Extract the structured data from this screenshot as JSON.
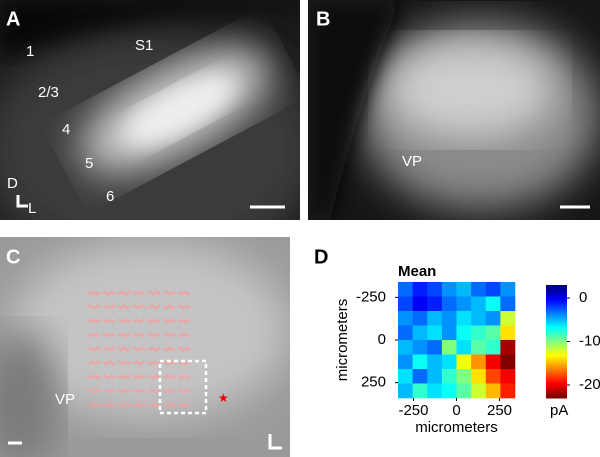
{
  "panels": {
    "A": {
      "label": "A",
      "annotations": [
        "S1",
        "1",
        "2/3",
        "4",
        "5",
        "6"
      ],
      "axes": [
        "D",
        "L"
      ]
    },
    "B": {
      "label": "B",
      "annotations": [
        "VP"
      ]
    },
    "C": {
      "label": "C",
      "annotations": [
        "VP"
      ]
    },
    "D": {
      "label": "D"
    }
  },
  "heatmap": {
    "type": "heatmap",
    "title": "Mean",
    "xlabel": "micrometers",
    "ylabel": "micrometers",
    "xlim": [
      -340,
      340
    ],
    "ylim": [
      -340,
      340
    ],
    "xticks": [
      -250,
      0,
      250
    ],
    "yticks": [
      -250,
      0,
      250
    ],
    "values": [
      [
        -3,
        -1,
        -2,
        -4,
        -5,
        -3,
        -2,
        -4
      ],
      [
        -2,
        0,
        -1,
        -3,
        -4,
        -5,
        -7,
        -3
      ],
      [
        -4,
        -3,
        -5,
        -4,
        -6,
        -5,
        -4,
        -12
      ],
      [
        -3,
        -5,
        -6,
        -4,
        -7,
        -8,
        -9,
        -14
      ],
      [
        -5,
        -4,
        -3,
        -10,
        -6,
        -9,
        -8,
        -22
      ],
      [
        -4,
        -7,
        -5,
        -6,
        -13,
        -16,
        -20,
        -24
      ],
      [
        -6,
        -3,
        -5,
        -8,
        -10,
        -14,
        -18,
        -20
      ],
      [
        -5,
        -8,
        -6,
        -7,
        -9,
        -12,
        -15,
        -19
      ]
    ],
    "colorbar": {
      "lim": [
        3,
        -23
      ],
      "ticks": [
        0,
        -10,
        -20
      ],
      "unit": "pA"
    }
  }
}
